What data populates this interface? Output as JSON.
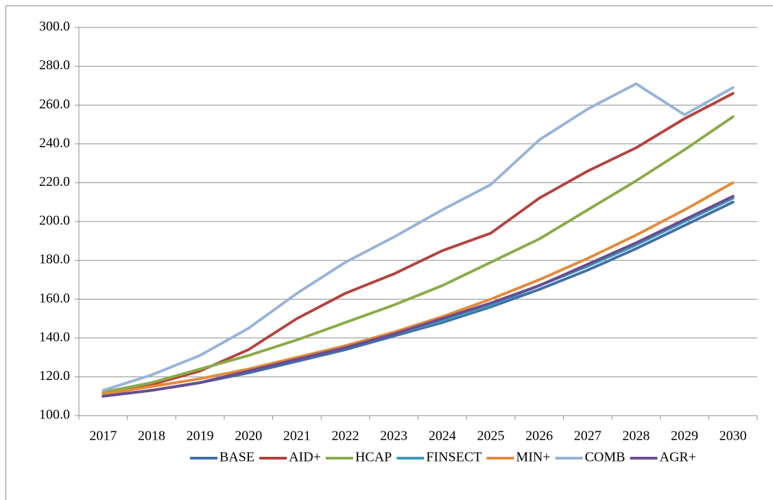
{
  "chart_data": {
    "type": "line",
    "categories": [
      "2017",
      "2018",
      "2019",
      "2020",
      "2021",
      "2022",
      "2023",
      "2024",
      "2025",
      "2026",
      "2027",
      "2028",
      "2029",
      "2030"
    ],
    "series": [
      {
        "name": "BASE",
        "color": "#4170a8",
        "values": [
          110,
          113,
          117,
          122,
          128,
          134,
          141,
          148,
          156,
          165,
          175,
          186,
          198,
          210
        ]
      },
      {
        "name": "AID+",
        "color": "#b3433f",
        "values": [
          111,
          116,
          123,
          134,
          150,
          163,
          173,
          185,
          194,
          212,
          226,
          238,
          253,
          266
        ]
      },
      {
        "name": "HCAP",
        "color": "#8aab48",
        "values": [
          112,
          117,
          124,
          131,
          139,
          148,
          157,
          167,
          179,
          191,
          206,
          221,
          237,
          254
        ]
      },
      {
        "name": "FINSECT",
        "color": "#3a9ab8",
        "values": [
          110,
          113,
          117,
          123,
          129,
          135,
          142,
          149,
          157,
          167,
          177,
          188,
          200,
          212
        ]
      },
      {
        "name": "MIN+",
        "color": "#e38a3a",
        "values": [
          111,
          115,
          119,
          124,
          130,
          136,
          143,
          151,
          160,
          170,
          181,
          193,
          206,
          220
        ]
      },
      {
        "name": "COMB",
        "color": "#98b3d8",
        "values": [
          113,
          121,
          131,
          145,
          163,
          179,
          192,
          206,
          219,
          242,
          258,
          271,
          255,
          269
        ]
      },
      {
        "name": "AGR+",
        "color": "#6a4c92",
        "values": [
          110,
          113,
          117,
          123,
          129,
          135,
          142,
          150,
          158,
          167,
          178,
          189,
          201,
          213
        ]
      }
    ],
    "ylim": [
      100,
      300
    ],
    "yticks": [
      {
        "value": 100,
        "label": "100.0"
      },
      {
        "value": 120,
        "label": "120.0"
      },
      {
        "value": 140,
        "label": "140.0"
      },
      {
        "value": 160,
        "label": "160.0"
      },
      {
        "value": 180,
        "label": "180.0"
      },
      {
        "value": 200,
        "label": "200.0"
      },
      {
        "value": 220,
        "label": "220.0"
      },
      {
        "value": 240,
        "label": "240.0"
      },
      {
        "value": 260,
        "label": "260.0"
      },
      {
        "value": 280,
        "label": "280.0"
      },
      {
        "value": 300,
        "label": "300.0"
      }
    ],
    "grid": true,
    "legend": "bottom"
  }
}
